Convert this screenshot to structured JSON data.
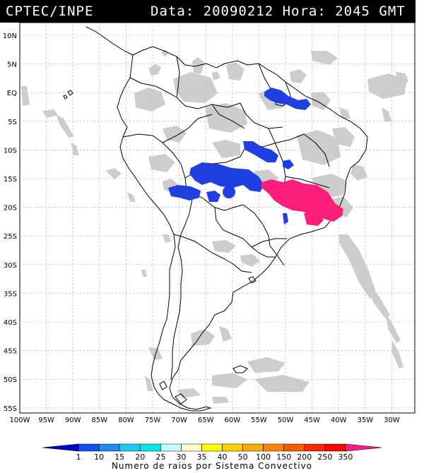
{
  "header": {
    "left": "CPTEC/INPE",
    "right": "Data: 20090212 Hora: 2045 GMT"
  },
  "map": {
    "lat_labels": [
      "10N",
      "5N",
      "EQ",
      "5S",
      "10S",
      "15S",
      "20S",
      "25S",
      "30S",
      "35S",
      "40S",
      "45S",
      "50S",
      "55S"
    ],
    "lon_labels": [
      "100W",
      "95W",
      "90W",
      "85W",
      "80W",
      "75W",
      "70W",
      "65W",
      "60W",
      "55W",
      "50W",
      "45W",
      "40W",
      "35W",
      "30W"
    ],
    "colors": {
      "cloud": "#c8c8c8",
      "low_density": "#1f3fe0",
      "high_density": "#ff1f7a",
      "coastline": "#000000",
      "grid": "#9a9a9a"
    }
  },
  "colorbar": {
    "ticks": [
      "1",
      "10",
      "15",
      "20",
      "25",
      "30",
      "35",
      "40",
      "50",
      "100",
      "150",
      "200",
      "250",
      "350"
    ],
    "colors": [
      "#0000cc",
      "#1450f0",
      "#1e8cf0",
      "#1ec8f0",
      "#00e6e6",
      "#c8ffff",
      "#ffffc8",
      "#ffff00",
      "#ffd200",
      "#ffaa00",
      "#ff8200",
      "#ff5a00",
      "#ff2800",
      "#ff0000",
      "#ff1e82"
    ],
    "caption": "Numero de raios por Sistema Convectivo"
  }
}
